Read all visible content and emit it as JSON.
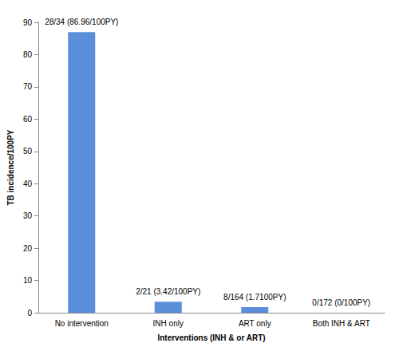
{
  "chart_data": {
    "type": "bar",
    "categories": [
      "No intervention",
      "INH only",
      "ART only",
      "Both INH & ART"
    ],
    "values": [
      86.96,
      3.42,
      1.71,
      0
    ],
    "value_labels": [
      "28/34 (86.96/100PY)",
      "2/21 (3.42/100PY)",
      "8/164 (1.7100PY)",
      "0/172 (0/100PY)"
    ],
    "data_labels": true,
    "color": "#5b8fd9",
    "x_label": "Interventions (INH & or ART)",
    "y_label": "TB incidence/100PY",
    "ylim": [
      0,
      90
    ],
    "yticks": [
      0,
      10,
      20,
      30,
      40,
      50,
      60,
      70,
      80,
      90
    ],
    "grid": false
  }
}
